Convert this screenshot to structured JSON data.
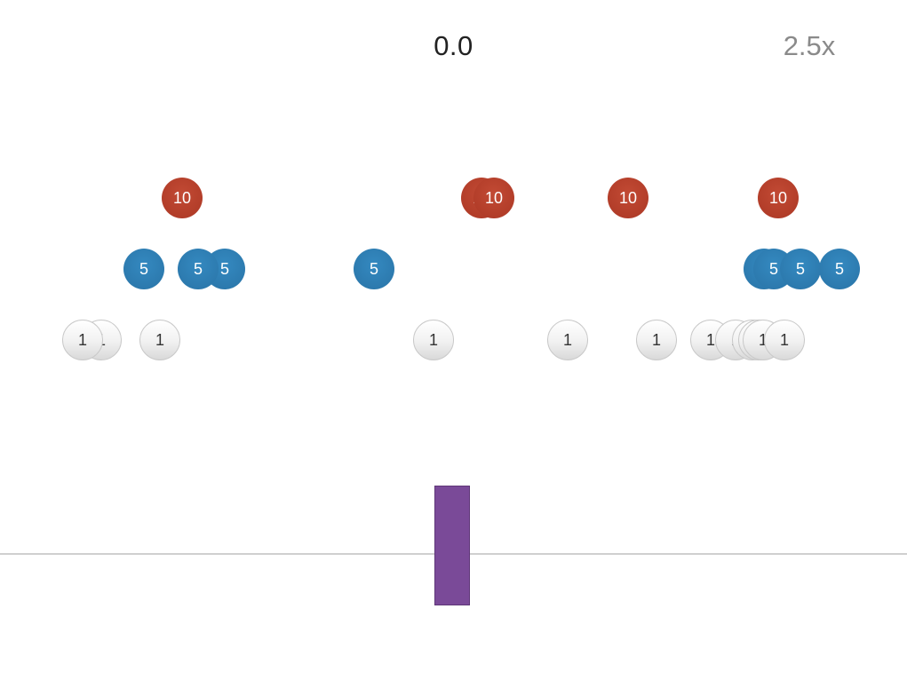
{
  "hud": {
    "score": "0.0",
    "multiplier": "2.5x"
  },
  "coins": {
    "red": [
      {
        "label": "10"
      },
      {
        "label": "10"
      },
      {
        "label": "10"
      },
      {
        "label": "10"
      },
      {
        "label": "10"
      }
    ],
    "blue": [
      {
        "label": "5"
      },
      {
        "label": "5"
      },
      {
        "label": "5"
      },
      {
        "label": "5"
      },
      {
        "label": "5"
      },
      {
        "label": "5"
      },
      {
        "label": "5"
      },
      {
        "label": "5"
      },
      {
        "label": "5"
      }
    ],
    "white": [
      {
        "label": "1"
      },
      {
        "label": "1"
      },
      {
        "label": "1"
      },
      {
        "label": "1"
      },
      {
        "label": "1"
      },
      {
        "label": "1"
      },
      {
        "label": "1"
      },
      {
        "label": "1"
      },
      {
        "label": "1"
      },
      {
        "label": "1"
      },
      {
        "label": "1"
      },
      {
        "label": "1"
      }
    ]
  },
  "colors": {
    "red_coin": "#b23d29",
    "blue_coin": "#2c79ad",
    "white_coin": "#f1f1f1",
    "paddle": "#7a4a98",
    "ground_line": "#cfcfcf",
    "multiplier_text": "#8a8a8a"
  }
}
